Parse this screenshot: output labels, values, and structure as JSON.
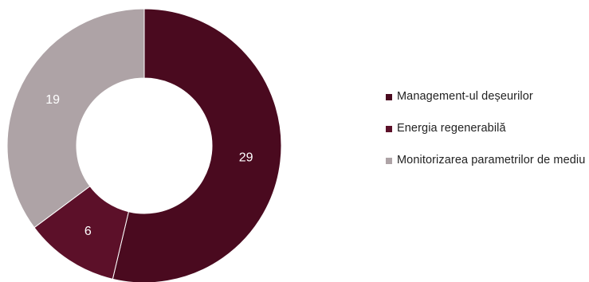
{
  "chart_data": {
    "type": "pie",
    "variant": "donut",
    "categories": [
      "Management-ul deșeurilor",
      "Energia regenerabilă",
      "Monitorizarea parametrilor de mediu"
    ],
    "values": [
      29,
      6,
      19
    ],
    "colors": [
      "#4a0a1f",
      "#5c1029",
      "#aea3a6"
    ],
    "title": "",
    "legend_position": "right"
  }
}
